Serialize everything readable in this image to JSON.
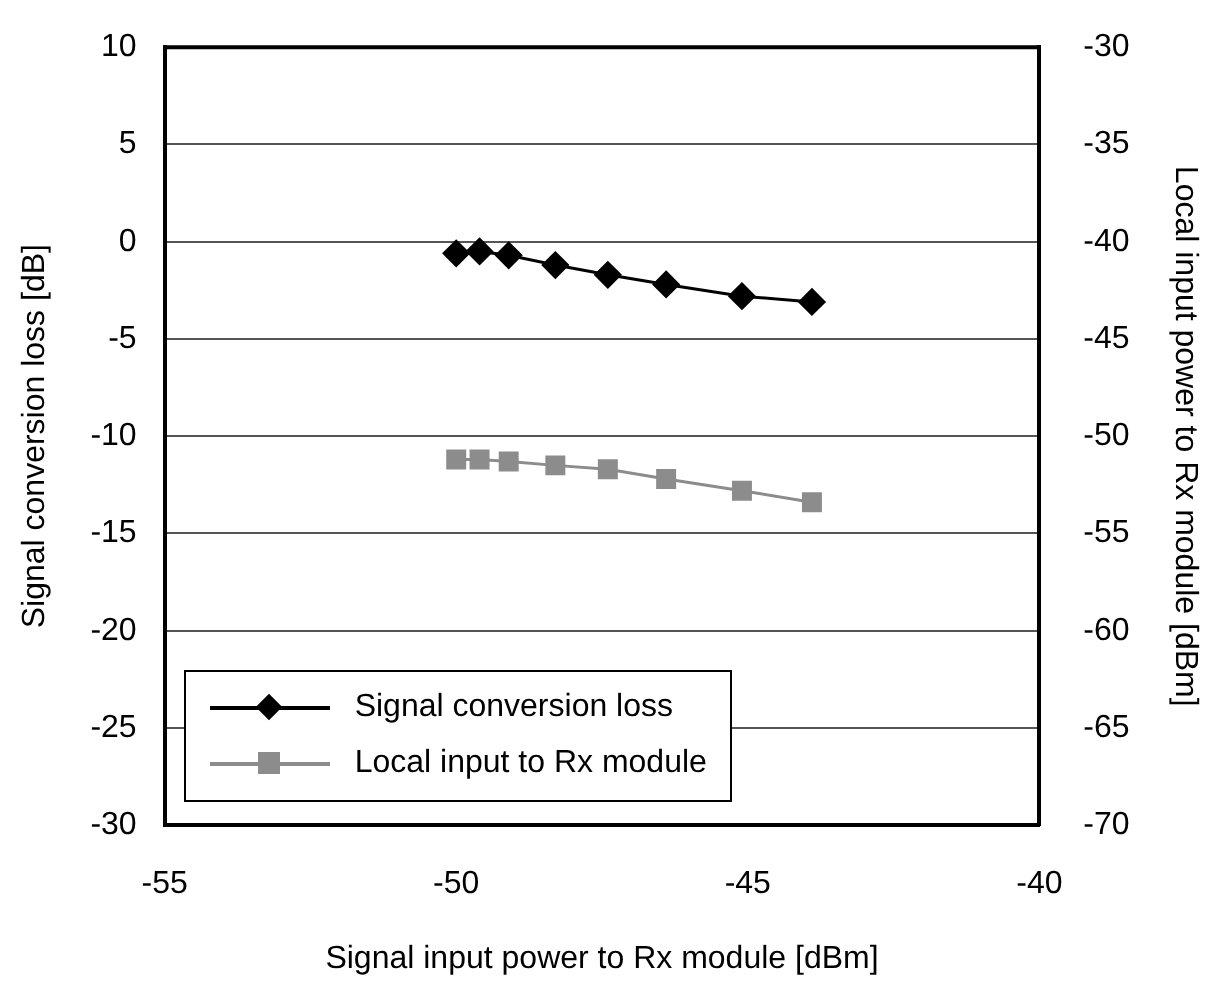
{
  "chart_data": {
    "type": "line",
    "xlabel": "Signal input power to Rx module [dBm]",
    "ylabel": "Signal conversion loss [dB]",
    "y2label": "Local input power to Rx module [dBm]",
    "xlim": [
      -55,
      -40
    ],
    "xticks": [
      -55,
      -50,
      -45,
      -40
    ],
    "ylim": [
      -30,
      10
    ],
    "yticks": [
      10,
      5,
      0,
      -5,
      -10,
      -15,
      -20,
      -25,
      -30
    ],
    "y2lim": [
      -70,
      -30
    ],
    "y2ticks": [
      -30,
      -35,
      -40,
      -45,
      -50,
      -55,
      -60,
      -65,
      -70
    ],
    "grid": "y",
    "legend": "bottom left",
    "line_style": "solid",
    "series": [
      {
        "name": "Signal conversion loss",
        "color": "#000000",
        "marker": "diamond",
        "x": [
          -50,
          -49.6,
          -49.1,
          -48.3,
          -47.4,
          -46.4,
          -45.1,
          -43.9
        ],
        "values": [
          -0.6,
          -0.5,
          -0.7,
          -1.2,
          -1.7,
          -2.2,
          -2.8,
          -3.1
        ]
      },
      {
        "name": "Local input to Rx module",
        "color": "#8c8c8c",
        "marker": "square",
        "axis": "y2",
        "x": [
          -50,
          -49.6,
          -49.1,
          -48.3,
          -47.4,
          -46.4,
          -45.1,
          -43.9
        ],
        "values": [
          -51.2,
          -51.2,
          -51.3,
          -51.5,
          -51.7,
          -52.2,
          -52.8,
          -53.4
        ]
      }
    ]
  }
}
